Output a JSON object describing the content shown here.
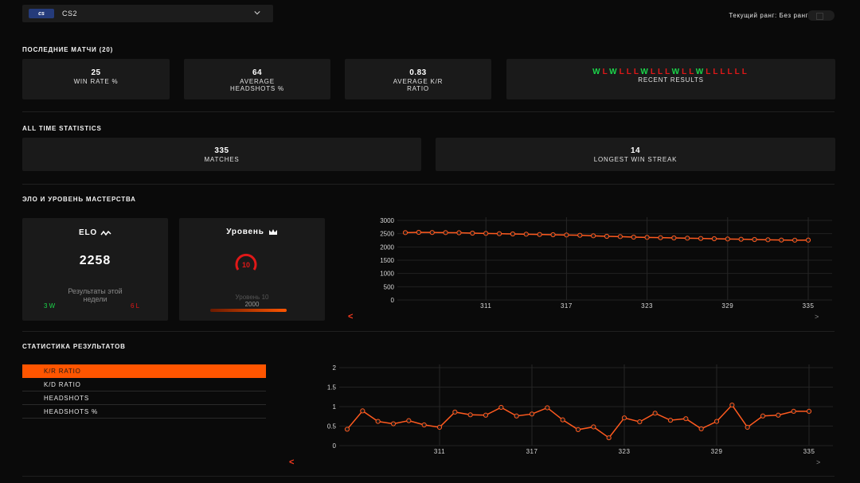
{
  "header": {
    "game_logo": "cs",
    "game_name": "CS2",
    "rank_text": "Текущий ранг: Без ранга"
  },
  "recent": {
    "title": "ПОСЛЕДНИЕ МАТЧИ (20)",
    "win_rate_value": "25",
    "win_rate_label": "WIN RATE %",
    "hs_value": "64",
    "hs_label_1": "AVERAGE",
    "hs_label_2": "HEADSHOTS %",
    "kr_value": "0.83",
    "kr_label_1": "AVERAGE K/R",
    "kr_label_2": "RATIO",
    "results": [
      "W",
      "L",
      "W",
      "L",
      "L",
      "L",
      "W",
      "L",
      "L",
      "L",
      "W",
      "L",
      "L",
      "W",
      "L",
      "L",
      "L",
      "L",
      "L",
      "L"
    ],
    "results_label": "RECENT RESULTS",
    "colors": {
      "win": "#1bd64a",
      "loss": "#e01818"
    }
  },
  "all_time": {
    "title": "ALL TIME STATISTICS",
    "matches_value": "335",
    "matches_label": "MATCHES",
    "streak_value": "14",
    "streak_label": "LONGEST WIN STREAK"
  },
  "elo_section": {
    "title": "ЭЛО И УРОВЕНЬ МАСТЕРСТВА",
    "elo_title": "ELO",
    "elo_value": "2258",
    "week_label_1": "Результаты этой",
    "week_label_2": "недели",
    "week_wins": "3 W",
    "week_losses": "6 L",
    "level_title": "Уровень",
    "level_badge": "10",
    "level_label": "Уровень 10",
    "level_elo": "2000",
    "level_progress": 1.0,
    "accent": "#ff5500"
  },
  "results_section": {
    "title": "СТАТИСТИКА РЕЗУЛЬТАТОВ",
    "tabs": [
      "K/R RATIO",
      "K/D RATIO",
      "HEADSHOTS",
      "HEADSHOTS %"
    ],
    "active_tab": 0
  },
  "chart_data": [
    {
      "type": "line",
      "title": "",
      "xlabel": "",
      "ylabel": "",
      "x": [
        305,
        306,
        307,
        308,
        309,
        310,
        311,
        312,
        313,
        314,
        315,
        316,
        317,
        318,
        319,
        320,
        321,
        322,
        323,
        324,
        325,
        326,
        327,
        328,
        329,
        330,
        331,
        332,
        333,
        334,
        335
      ],
      "series": [
        {
          "name": "",
          "values": [
            2540,
            2550,
            2545,
            2540,
            2535,
            2520,
            2510,
            2500,
            2490,
            2480,
            2470,
            2460,
            2450,
            2440,
            2420,
            2400,
            2390,
            2370,
            2360,
            2350,
            2340,
            2330,
            2320,
            2310,
            2300,
            2290,
            2280,
            2270,
            2260,
            2255,
            2258
          ]
        }
      ],
      "ylim": [
        0,
        3000
      ],
      "yticks": [
        "0",
        "500",
        "1000",
        "1500",
        "2000",
        "2500",
        "3000"
      ],
      "xticks": [
        "311",
        "317",
        "323",
        "329",
        "335"
      ],
      "grid": true,
      "nav_prev": "<",
      "nav_next": ">"
    },
    {
      "type": "line",
      "title": "",
      "xlabel": "",
      "ylabel": "",
      "x": [
        305,
        306,
        307,
        308,
        309,
        310,
        311,
        312,
        313,
        314,
        315,
        316,
        317,
        318,
        319,
        320,
        321,
        322,
        323,
        324,
        325,
        326,
        327,
        328,
        329,
        330,
        331,
        332,
        333,
        334,
        335
      ],
      "series": [
        {
          "name": "",
          "values": [
            0.42,
            0.89,
            0.62,
            0.56,
            0.64,
            0.53,
            0.47,
            0.86,
            0.79,
            0.78,
            0.98,
            0.76,
            0.81,
            0.97,
            0.66,
            0.41,
            0.48,
            0.2,
            0.71,
            0.61,
            0.83,
            0.65,
            0.69,
            0.43,
            0.62,
            1.04,
            0.47,
            0.76,
            0.78,
            0.88,
            0.88
          ]
        }
      ],
      "ylim": [
        0,
        2
      ],
      "yticks": [
        "0",
        "0.5",
        "1",
        "1.5",
        "2"
      ],
      "xticks": [
        "311",
        "317",
        "323",
        "329",
        "335"
      ],
      "grid": true,
      "nav_prev": "<",
      "nav_next": ">"
    }
  ]
}
